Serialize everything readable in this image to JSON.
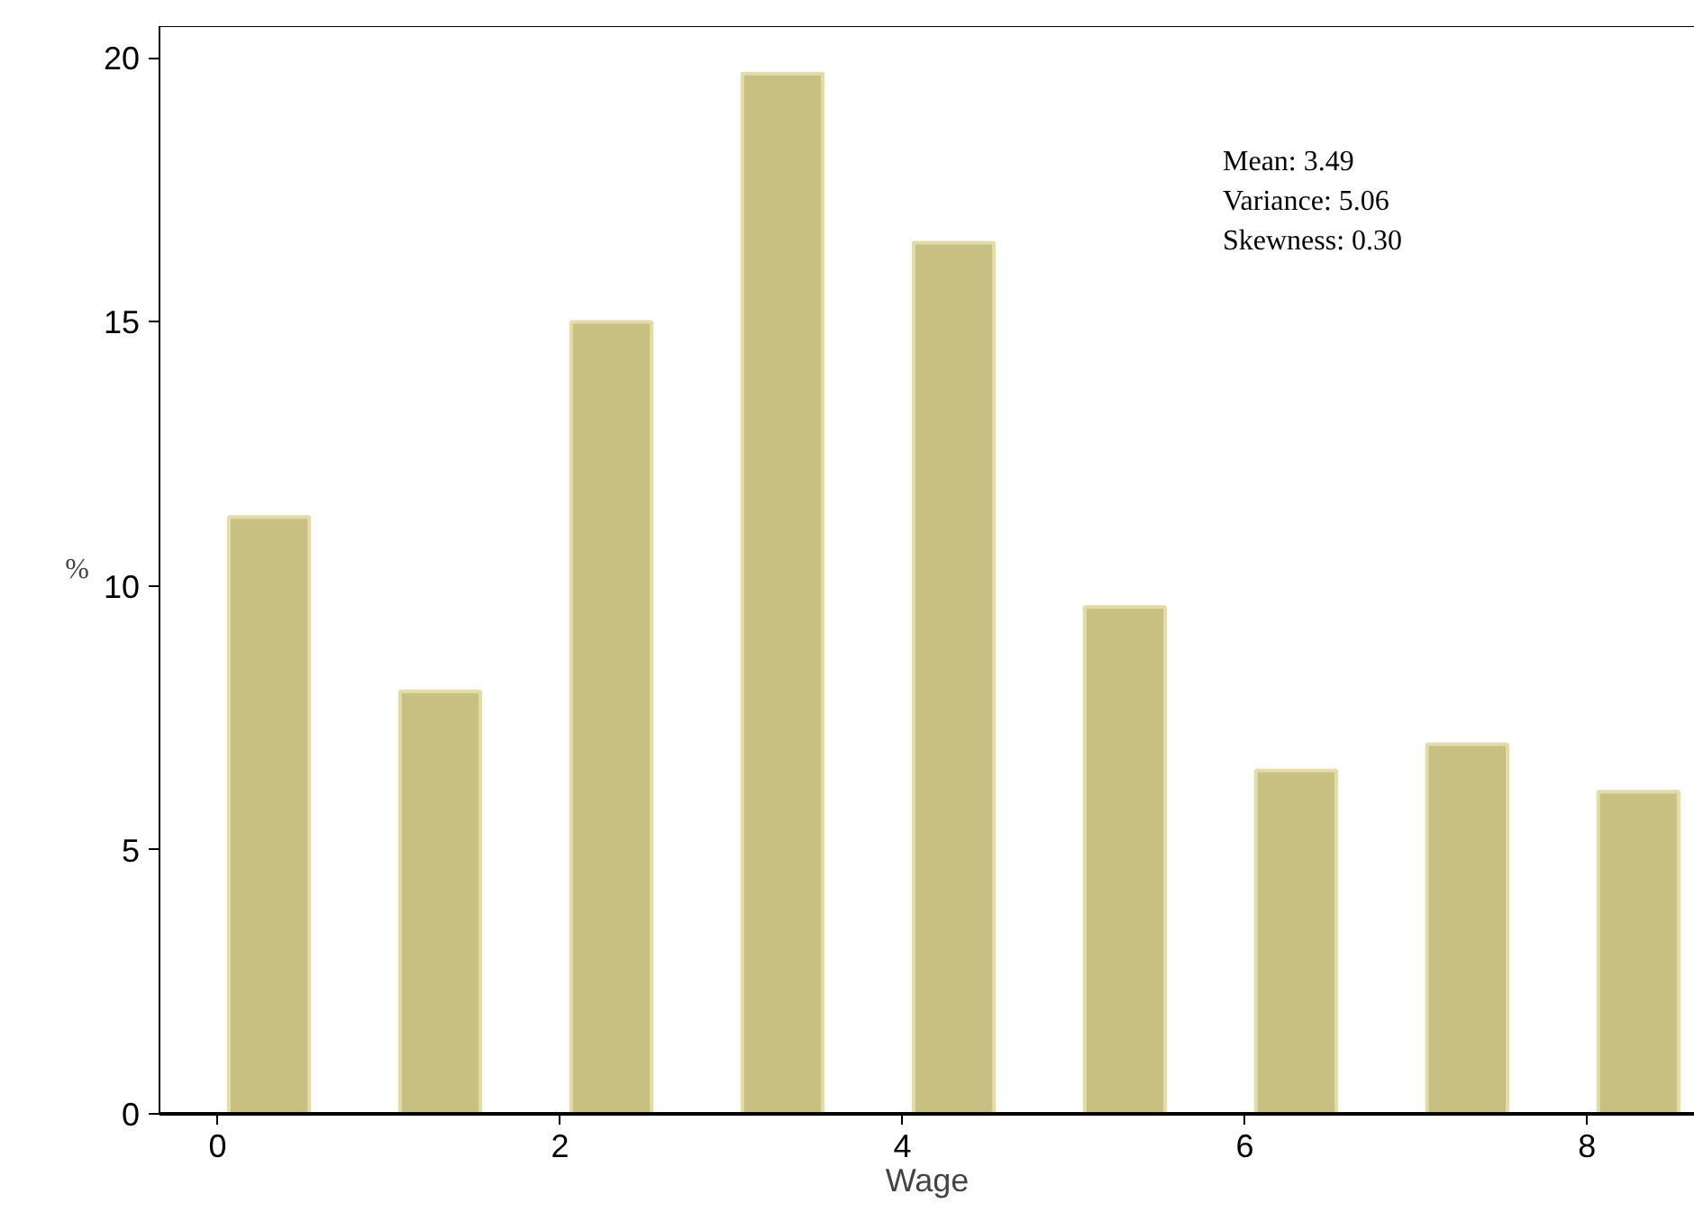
{
  "chart_data": {
    "type": "bar",
    "xlabel": "Wage",
    "ylabel": "%",
    "x": [
      0.3,
      1.3,
      2.3,
      3.3,
      4.3,
      5.3,
      6.3,
      7.3,
      8.3
    ],
    "values": [
      11.3,
      8.0,
      15.0,
      19.7,
      16.5,
      9.6,
      6.5,
      7.0,
      6.1
    ],
    "color": "#c8c080",
    "xlim": [
      -0.34,
      8.63
    ],
    "ylim": [
      0,
      20.6
    ],
    "xticks": [
      0,
      2,
      4,
      6,
      8
    ],
    "yticks": [
      0,
      5,
      10,
      15,
      20
    ],
    "grid": false,
    "annotations": [
      "Mean: 3.49",
      "Variance: 5.06",
      "Skewness: 0.30"
    ]
  }
}
